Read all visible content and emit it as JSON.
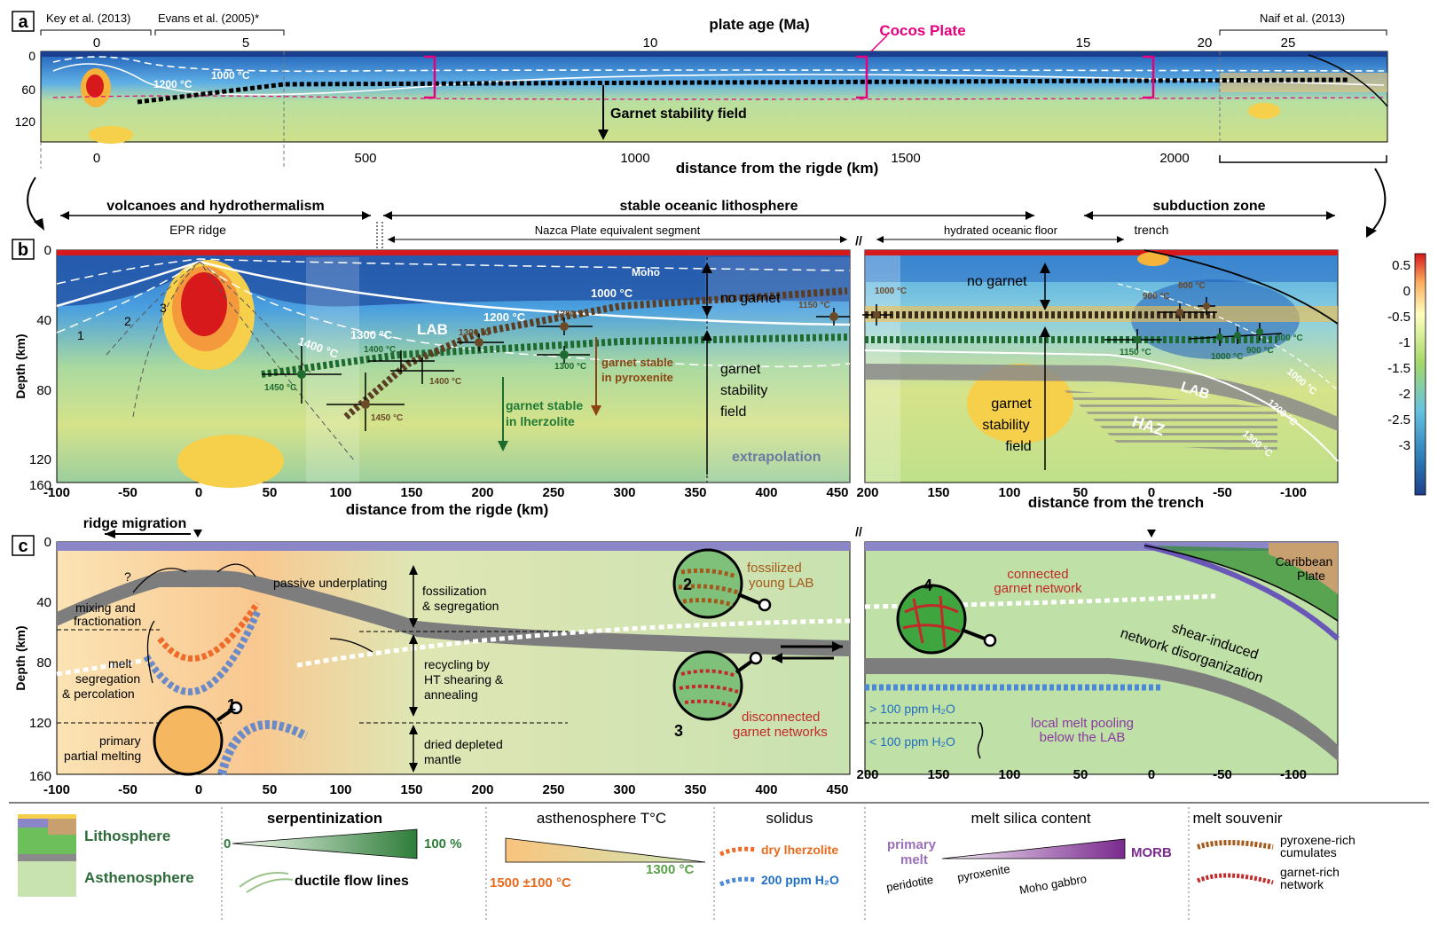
{
  "panel_a": {
    "label": "a",
    "refs": [
      "Key et al. (2013)",
      "Evans et al. (2005)*",
      "Naif et al. (2013)"
    ],
    "top_axis_title": "plate age (Ma)",
    "top_ticks": [
      "0",
      "5",
      "10",
      "15",
      "20",
      "25"
    ],
    "plate_label": "Cocos Plate",
    "depth_ticks": [
      "0",
      "60",
      "120"
    ],
    "bottom_ticks": [
      "0",
      "500",
      "1000",
      "1500",
      "2000"
    ],
    "x_title": "distance from the rigde (km)",
    "isotherms": [
      "1000 °C",
      "1200 °C"
    ],
    "garnet_label": "Garnet stability field"
  },
  "panel_b": {
    "label": "b",
    "headers": [
      "volcanoes and hydrothermalism",
      "stable oceanic lithosphere",
      "subduction zone"
    ],
    "subheaders": [
      "EPR ridge",
      "Nazca Plate equivalent segment",
      "hydrated oceanic floor",
      "trench"
    ],
    "y_title": "Depth (km)",
    "y_ticks": [
      "0",
      "40",
      "80",
      "120",
      "160"
    ],
    "x_ticks_left": [
      "-100",
      "-50",
      "0",
      "50",
      "100",
      "150",
      "200",
      "250",
      "300",
      "350",
      "400",
      "450"
    ],
    "x_ticks_right": [
      "200",
      "150",
      "100",
      "50",
      "0",
      "-50",
      "-100"
    ],
    "x_title_left": "distance from the rigde (km)",
    "x_title_right": "distance from the trench",
    "labels": {
      "moho": "Moho",
      "lab": "LAB",
      "haz": "HAZ",
      "no_garnet": "no garnet",
      "garnet_stability": [
        "garnet",
        "stability",
        "field"
      ],
      "garnet_lherz": [
        "garnet stable",
        "in lherzolite"
      ],
      "garnet_pyrox": [
        "garnet stable",
        "in pyroxenite"
      ],
      "extrapolation": "extrapolation",
      "sections": [
        "1",
        "2",
        "3"
      ],
      "isotherms_left": [
        "1000 °C",
        "1200 °C",
        "1300 °C",
        "1400 °C"
      ],
      "isotherms_right": [
        "1000 °C",
        "1200 °C",
        "1300 °C"
      ],
      "point_temps": [
        "1450 °C",
        "1400 °C",
        "1400 °C",
        "1450 °C",
        "1300 °C",
        "1200 °C",
        "1300 °C",
        "1150 °C",
        "1000 °C",
        "900 °C",
        "800 °C",
        "1150 °C",
        "1000 °C",
        "900 °C",
        "800 °C"
      ]
    },
    "colorbar_ticks": [
      "0.5",
      "0",
      "-0.5",
      "-1",
      "-1.5",
      "-2",
      "-2.5",
      "-3"
    ]
  },
  "panel_c": {
    "label": "c",
    "ridge_migration": "ridge migration",
    "y_title": "Depth (km)",
    "y_ticks": [
      "0",
      "40",
      "80",
      "120",
      "160"
    ],
    "x_ticks_left": [
      "-100",
      "-50",
      "0",
      "50",
      "100",
      "150",
      "200",
      "250",
      "300",
      "350",
      "400",
      "450"
    ],
    "x_ticks_right": [
      "200",
      "150",
      "100",
      "50",
      "0",
      "-50",
      "-100"
    ],
    "annotations": {
      "q": "?",
      "mixing": [
        "mixing and",
        "fractionation"
      ],
      "melt_seg": [
        "melt",
        "segregation",
        "& percolation"
      ],
      "primary": [
        "primary",
        "partial melting"
      ],
      "passive": "passive underplating",
      "fossil_seg": [
        "fossilization",
        "& segregation"
      ],
      "recycling": [
        "recycling by",
        "HT shearing &",
        "annealing"
      ],
      "dried": [
        "dried depleted",
        "mantle"
      ],
      "fossil_lab": [
        "fossilized",
        "young LAB"
      ],
      "disconnected": [
        "disconnected",
        "garnet networks"
      ],
      "connected": [
        "connected",
        "garnet network"
      ],
      "shear": [
        "shear-induced",
        "network disorganization"
      ],
      "caribbean": [
        "Caribbean",
        "Plate"
      ],
      "h2o_hi": "> 100 ppm H₂O",
      "h2o_lo": "< 100 ppm H₂O",
      "pooling": [
        "local melt pooling",
        "below the LAB"
      ],
      "numbers": [
        "1",
        "2",
        "3",
        "4"
      ]
    }
  },
  "legend": {
    "lithosphere": "Lithosphere",
    "asthenosphere": "Asthenosphere",
    "serp_title": "serpentinization",
    "serp_min": "0",
    "serp_max": "100 %",
    "flow_lines": "ductile flow lines",
    "temp_title": "asthenosphere T°C",
    "temp_min": "1500 ±100 °C",
    "temp_max": "1300 °C",
    "solidus_title": "solidus",
    "solidus_dry": "dry lherzolite",
    "solidus_wet": "200 ppm H₂O",
    "silica_title": "melt silica content",
    "silica_primary": [
      "primary",
      "melt"
    ],
    "silica_morb": "MORB",
    "silica_items": [
      "peridotite",
      "pyroxenite",
      "Moho gabbro"
    ],
    "souvenir_title": "melt souvenir",
    "souvenir_pyx": [
      "pyroxene-rich",
      "cumulates"
    ],
    "souvenir_gt": [
      "garnet-rich",
      "network"
    ]
  },
  "colors": {
    "magenta": "#e6007e",
    "blue_dark": "#1f4ea8",
    "red": "#d7191c",
    "green_text": "#1e7a36",
    "brown": "#8b4513",
    "orange": "#e86a1c",
    "purple": "#8a3aa0"
  }
}
